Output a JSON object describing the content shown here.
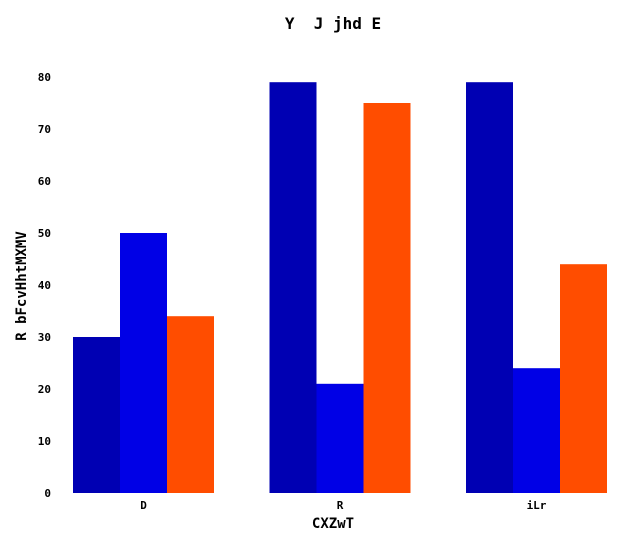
{
  "chart_data": {
    "type": "bar",
    "title": "Y  J jhd E",
    "xlabel": "CXZwT",
    "ylabel": "R bFcvHhtMXMV",
    "categories": [
      "D",
      "R",
      "iLr"
    ],
    "series": [
      {
        "color": "#0000b3",
        "values": [
          30,
          79,
          79
        ]
      },
      {
        "color": "#0000e6",
        "values": [
          50,
          21,
          24
        ]
      },
      {
        "color": "#ff4d00",
        "values": [
          34,
          75,
          44
        ]
      }
    ],
    "ylim": [
      0,
      80
    ],
    "yticks": [
      0,
      10,
      20,
      30,
      40,
      50,
      60,
      70,
      80
    ],
    "grid": false,
    "legend": "none"
  }
}
